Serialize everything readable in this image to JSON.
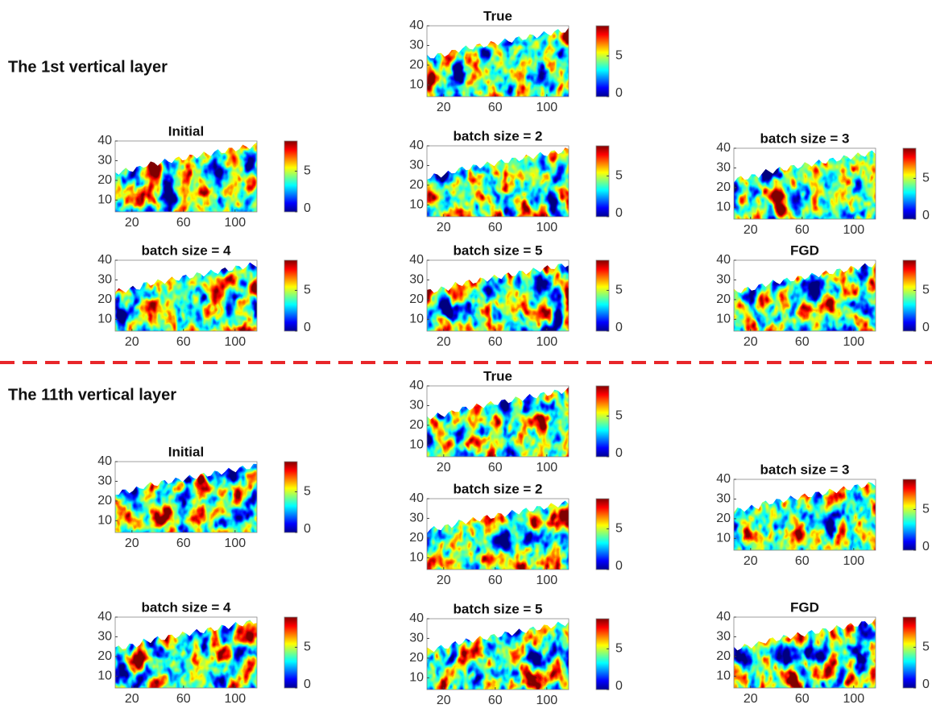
{
  "axes": {
    "xlim": [
      7,
      117
    ],
    "xticks": [
      20,
      60,
      100
    ],
    "ylim": [
      4,
      40
    ],
    "yticks": [
      10,
      20,
      30,
      40
    ],
    "clim": [
      0,
      8.7
    ],
    "cticks": [
      0,
      5
    ]
  },
  "sections": [
    {
      "title": "The 1st vertical layer",
      "panels": [
        {
          "title": "True"
        },
        {
          "title": "Initial"
        },
        {
          "title": "batch size = 2"
        },
        {
          "title": "batch size = 3"
        },
        {
          "title": "batch size = 4"
        },
        {
          "title": "batch size = 5"
        },
        {
          "title": "FGD"
        }
      ]
    },
    {
      "title": "The 11th vertical layer",
      "panels": [
        {
          "title": "True"
        },
        {
          "title": "Initial"
        },
        {
          "title": "batch size = 2"
        },
        {
          "title": "batch size = 3"
        },
        {
          "title": "batch size = 4"
        },
        {
          "title": "batch size = 5"
        },
        {
          "title": "FGD"
        }
      ]
    }
  ]
}
